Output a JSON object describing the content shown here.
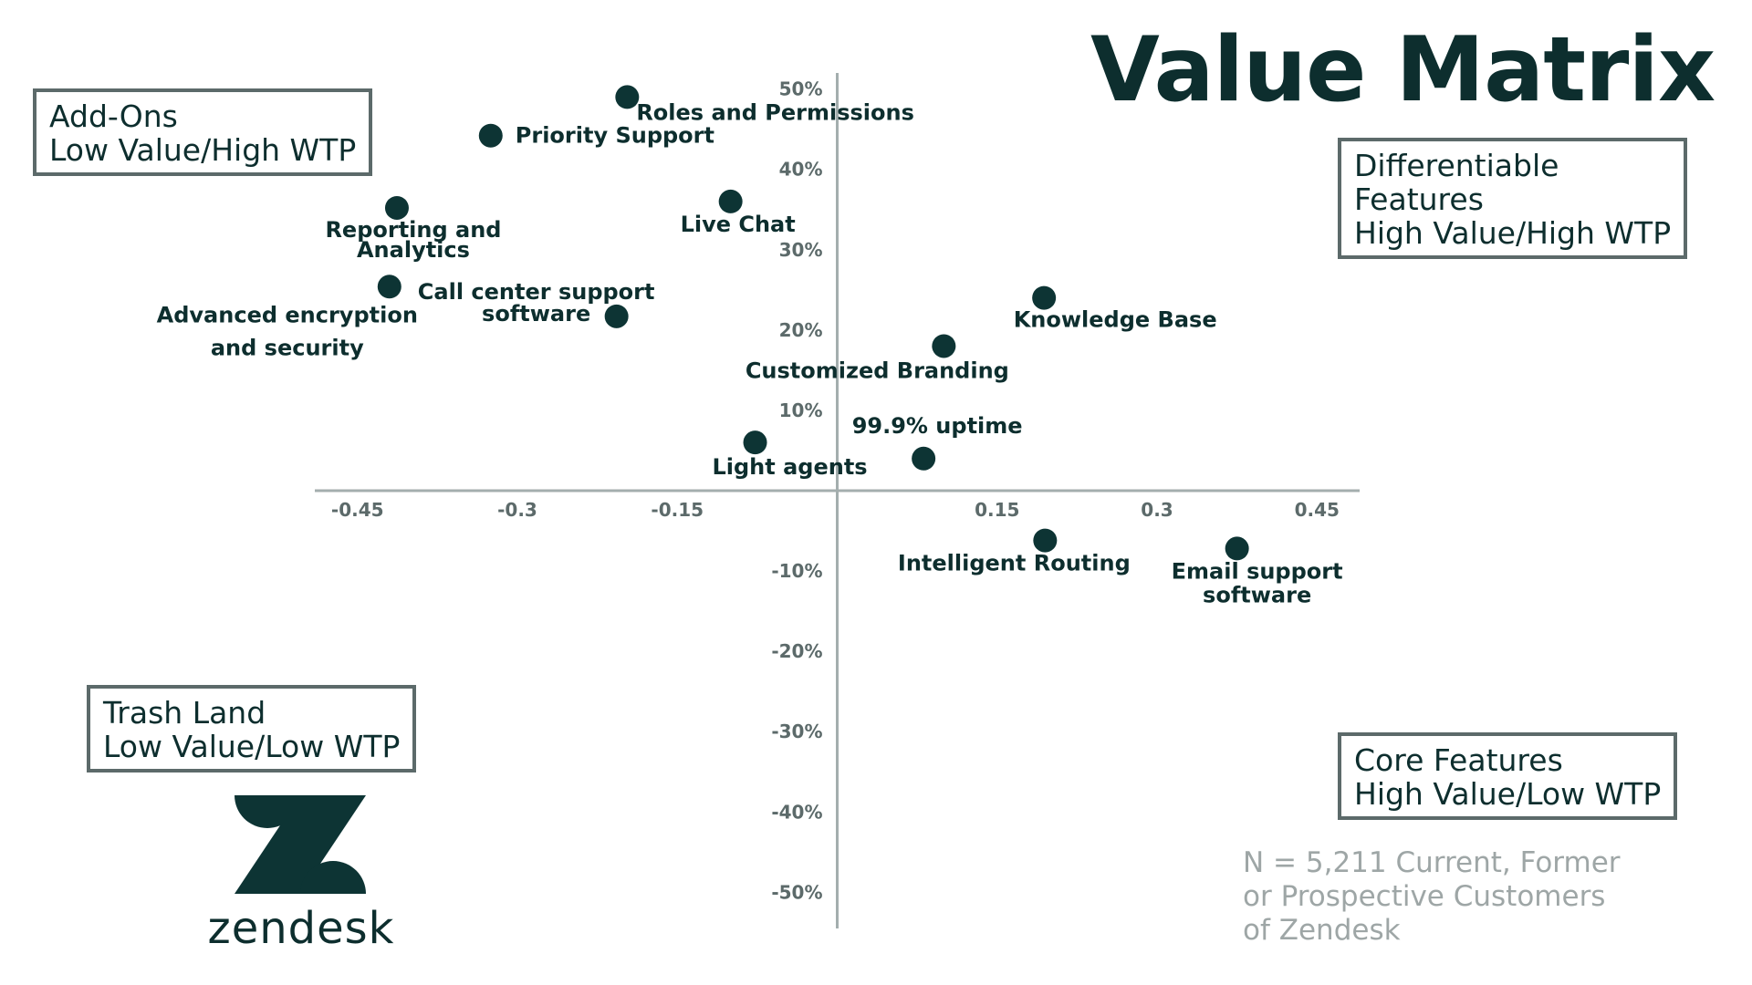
{
  "title": "Value Matrix",
  "quadrants": {
    "top_left": [
      "Add-Ons",
      "Low Value/High WTP"
    ],
    "top_right": [
      "Differentiable",
      "Features",
      "High Value/High WTP"
    ],
    "bottom_left": [
      "Trash Land",
      "Low Value/Low WTP"
    ],
    "bottom_right": [
      "Core Features",
      "High Value/Low WTP"
    ]
  },
  "sample_note": [
    "N = 5,211 Current, Former",
    "or Prospective Customers",
    "of Zendesk"
  ],
  "logo": {
    "wordmark": "zendesk"
  },
  "colors": {
    "point": "#0d3434",
    "text": "#0d2e2e",
    "axis": "#a4aeae",
    "tick": "#5c6a6a",
    "box_border": "#5c6a6a",
    "note": "#9ea6a6"
  },
  "chart_data": {
    "type": "scatter",
    "title": "Value Matrix",
    "xlabel": "",
    "ylabel": "",
    "xlim": [
      -0.49,
      0.49
    ],
    "ylim": [
      -0.545,
      0.52
    ],
    "x_ticks": [
      -0.45,
      -0.3,
      -0.15,
      0.15,
      0.3,
      0.45
    ],
    "x_tick_labels": [
      "-0.45",
      "-0.3",
      "-0.15",
      "0.15",
      "0.3",
      "0.45"
    ],
    "y_ticks": [
      0.5,
      0.4,
      0.3,
      0.2,
      0.1,
      -0.1,
      -0.2,
      -0.3,
      -0.4,
      -0.5
    ],
    "y_tick_labels": [
      "50%",
      "40%",
      "30%",
      "20%",
      "10%",
      "-10%",
      "-20%",
      "-30%",
      "-40%",
      "-50%"
    ],
    "grid": false,
    "points": [
      {
        "label": "Roles and Permissions",
        "label_lines": [
          "Roles and Permissions"
        ],
        "x": -0.197,
        "y": 0.49
      },
      {
        "label": "Priority Support",
        "label_lines": [
          "Priority Support"
        ],
        "x": -0.325,
        "y": 0.442
      },
      {
        "label": "Live Chat",
        "label_lines": [
          "Live Chat"
        ],
        "x": -0.1,
        "y": 0.36
      },
      {
        "label": "Reporting and Analytics",
        "label_lines": [
          "Reporting and",
          "Analytics"
        ],
        "x": -0.413,
        "y": 0.352
      },
      {
        "label": "Advanced encryption and security",
        "label_lines": [
          "Advanced encryption",
          "and security"
        ],
        "x": -0.42,
        "y": 0.254
      },
      {
        "label": "Call center support software",
        "label_lines": [
          "Call center support",
          "software"
        ],
        "x": -0.207,
        "y": 0.217
      },
      {
        "label": "Knowledge Base",
        "label_lines": [
          "Knowledge Base"
        ],
        "x": 0.194,
        "y": 0.24
      },
      {
        "label": "Customized Branding",
        "label_lines": [
          "Customized Branding"
        ],
        "x": 0.1,
        "y": 0.18
      },
      {
        "label": "99.9% uptime",
        "label_lines": [
          "99.9% uptime"
        ],
        "x": 0.081,
        "y": 0.04
      },
      {
        "label": "Light agents",
        "label_lines": [
          "Light agents"
        ],
        "x": -0.077,
        "y": 0.06
      },
      {
        "label": "Intelligent Routing",
        "label_lines": [
          "Intelligent Routing"
        ],
        "x": 0.195,
        "y": -0.062
      },
      {
        "label": "Email support software",
        "label_lines": [
          "Email support",
          "software"
        ],
        "x": 0.375,
        "y": -0.072
      }
    ]
  }
}
